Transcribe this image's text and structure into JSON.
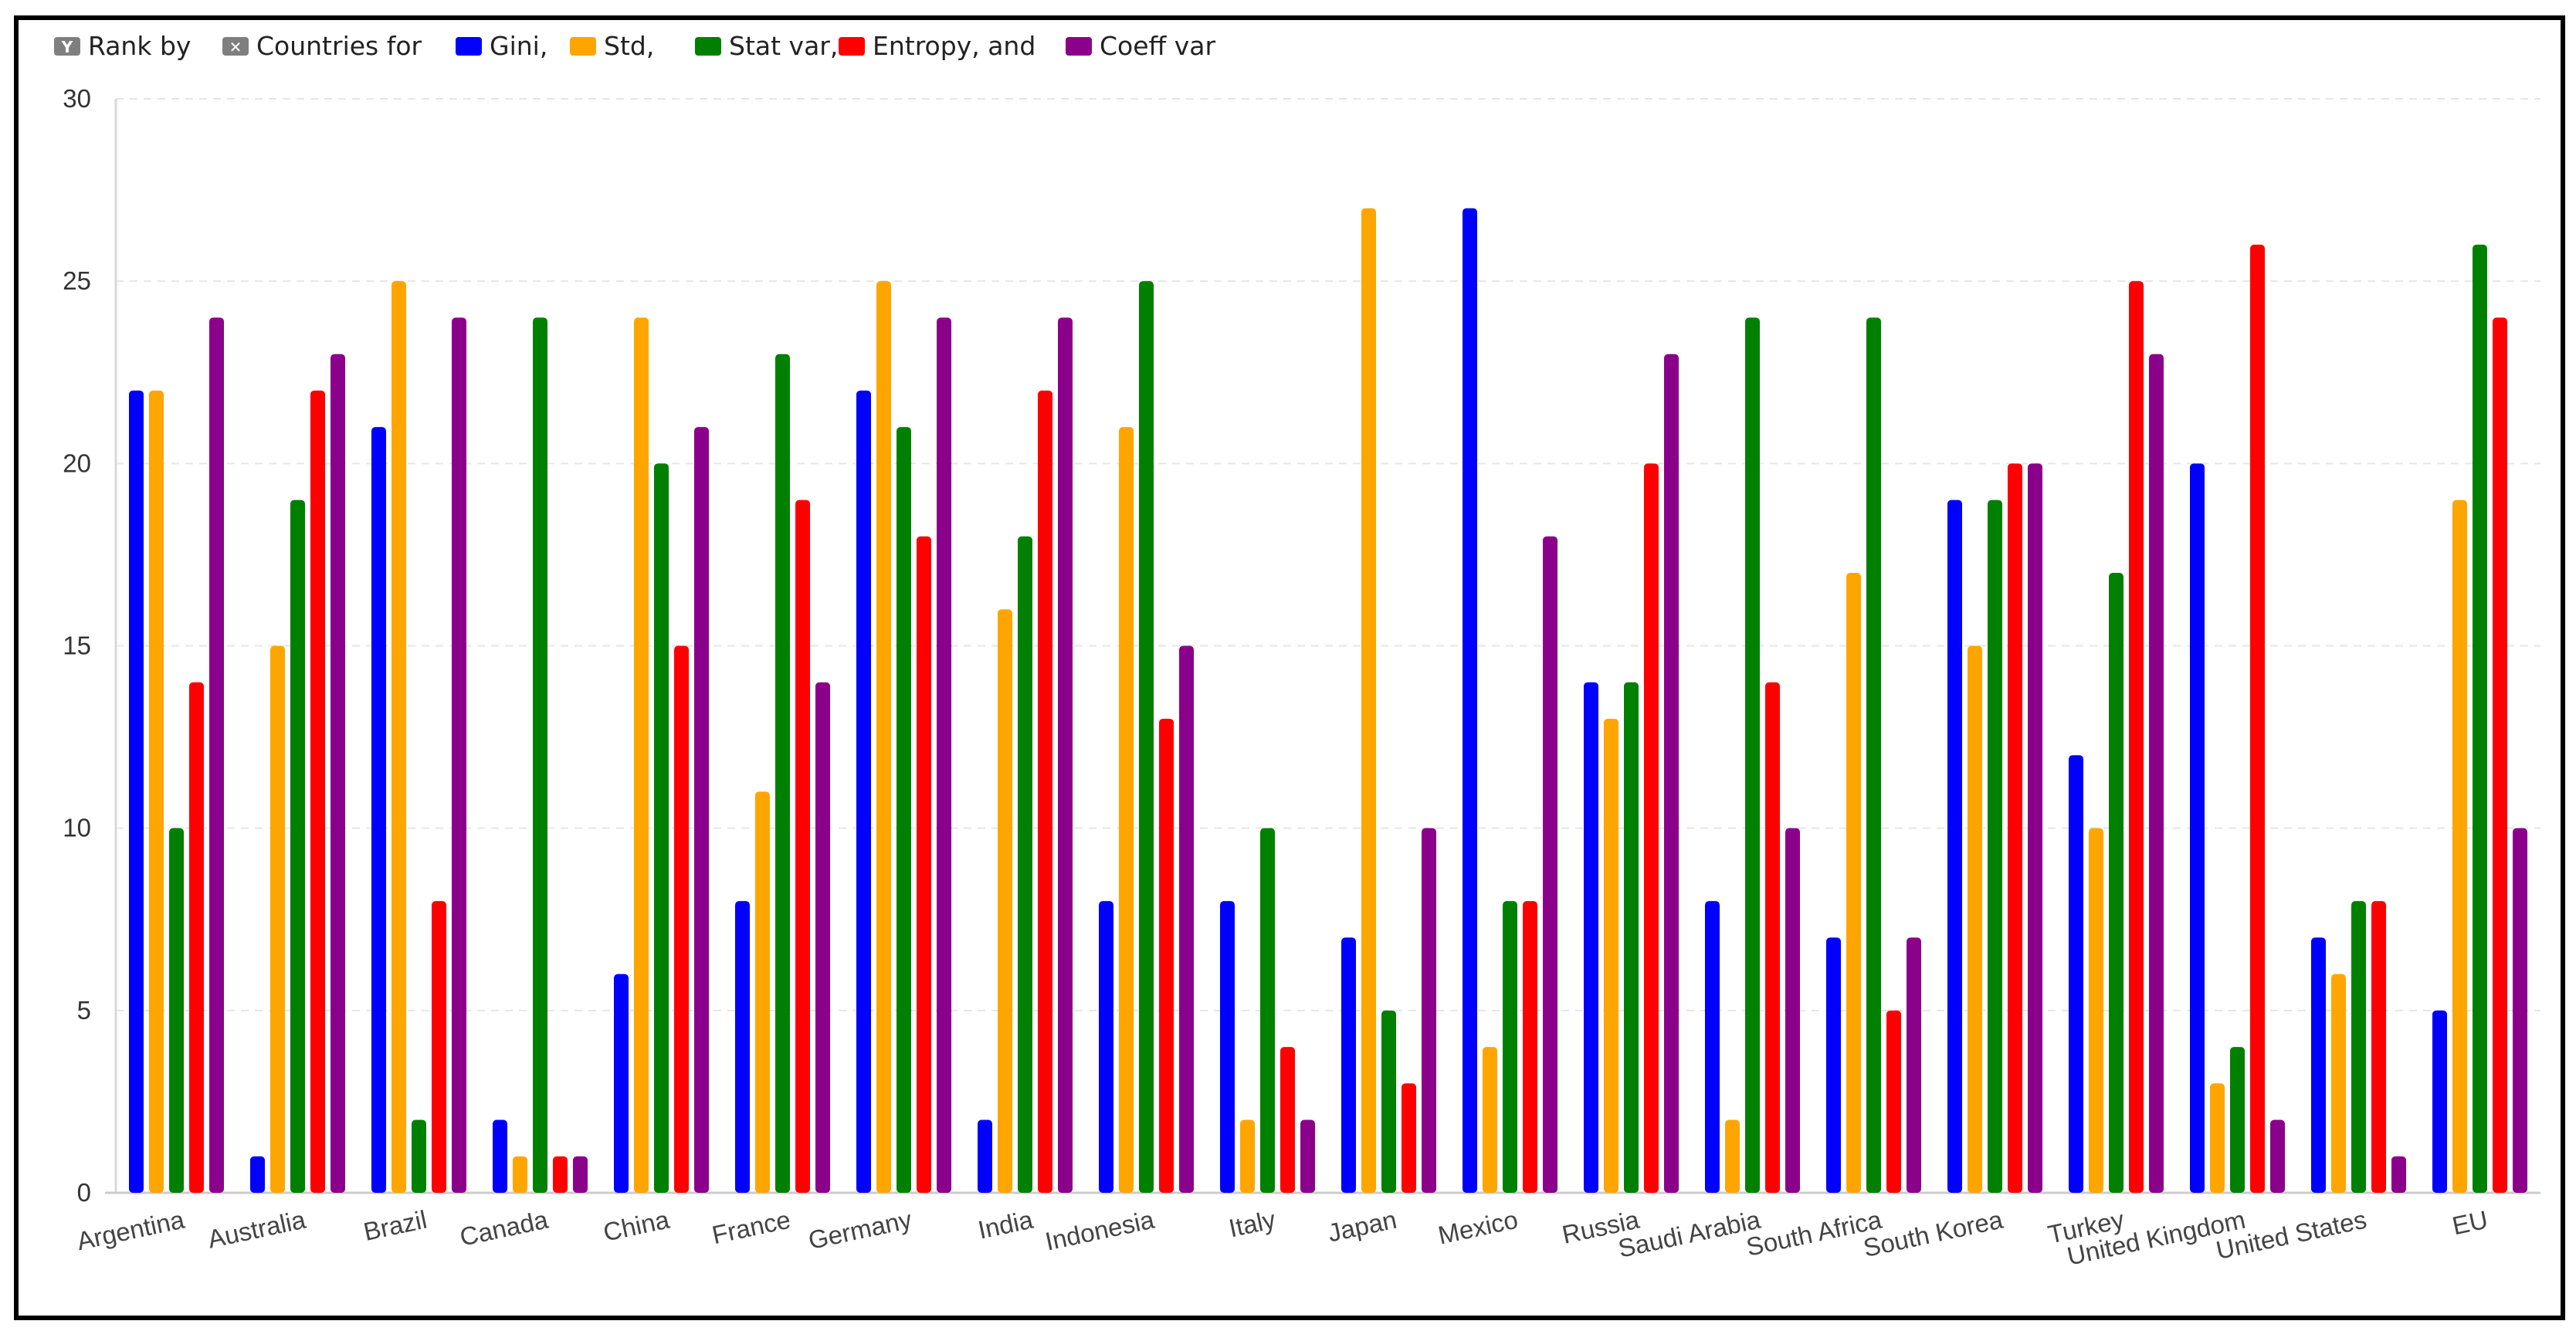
{
  "legend": {
    "items": [
      {
        "kind": "filter",
        "color": "#7f7f7f",
        "glyph": "Y",
        "label": "Rank by",
        "icon": "filter-icon"
      },
      {
        "kind": "filter",
        "color": "#7f7f7f",
        "glyph": "✕",
        "label": "Countries for",
        "icon": "close-icon"
      },
      {
        "kind": "series",
        "label": "Gini,"
      },
      {
        "kind": "series",
        "label": "Std,"
      },
      {
        "kind": "series",
        "label": "Stat var,"
      },
      {
        "kind": "series",
        "label": "Entropy, and"
      },
      {
        "kind": "series",
        "label": "Coeff var"
      }
    ]
  },
  "chart_data": {
    "type": "bar",
    "categories": [
      "Argentina",
      "Australia",
      "Brazil",
      "Canada",
      "China",
      "France",
      "Germany",
      "India",
      "Indonesia",
      "Italy",
      "Japan",
      "Mexico",
      "Russia",
      "Saudi Arabia",
      "South Africa",
      "South Korea",
      "Turkey",
      "United Kingdom",
      "United States",
      "EU"
    ],
    "series": [
      {
        "name": "Gini",
        "color": "#0000ff",
        "values": [
          22,
          1,
          21,
          2,
          6,
          8,
          22,
          2,
          8,
          8,
          7,
          27,
          14,
          8,
          7,
          19,
          12,
          20,
          7,
          5
        ]
      },
      {
        "name": "Std",
        "color": "#ffa500",
        "values": [
          22,
          15,
          25,
          1,
          24,
          11,
          25,
          16,
          21,
          2,
          27,
          4,
          13,
          2,
          17,
          15,
          10,
          3,
          6,
          19
        ]
      },
      {
        "name": "Stat var",
        "color": "#008000",
        "values": [
          10,
          19,
          2,
          24,
          20,
          23,
          21,
          18,
          25,
          10,
          5,
          8,
          14,
          24,
          24,
          19,
          17,
          4,
          8,
          26
        ]
      },
      {
        "name": "Entropy",
        "color": "#ff0000",
        "values": [
          14,
          22,
          8,
          1,
          15,
          19,
          18,
          22,
          13,
          4,
          3,
          8,
          20,
          14,
          5,
          20,
          25,
          26,
          8,
          24
        ]
      },
      {
        "name": "Coeff var",
        "color": "#8b008b",
        "values": [
          24,
          23,
          24,
          1,
          21,
          14,
          24,
          24,
          15,
          2,
          10,
          18,
          23,
          10,
          7,
          20,
          23,
          2,
          1,
          10
        ]
      }
    ],
    "yticks": [
      "0",
      "5",
      "10",
      "15",
      "20",
      "25",
      "30"
    ],
    "ylim": [
      0,
      30
    ],
    "grid": true,
    "legend_position": "top-left"
  }
}
